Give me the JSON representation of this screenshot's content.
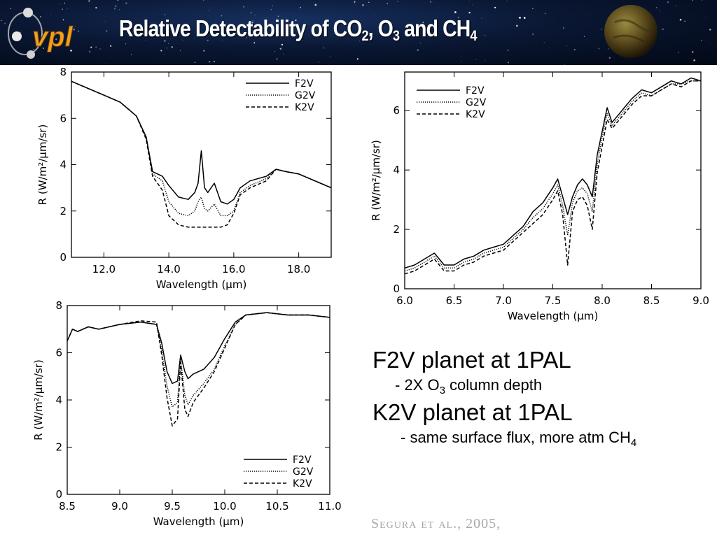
{
  "header": {
    "logo_text": "vpl",
    "title_parts": [
      {
        "t": "Relative Detectability of CO",
        "sub": false
      },
      {
        "t": "2",
        "sub": true
      },
      {
        "t": ", O",
        "sub": false
      },
      {
        "t": "3",
        "sub": true
      },
      {
        "t": " and CH",
        "sub": false
      },
      {
        "t": "4",
        "sub": true
      }
    ]
  },
  "notes": {
    "line1": "F2V planet at 1PAL",
    "line2_parts": [
      {
        "t": "- 2X O",
        "sub": false
      },
      {
        "t": "3",
        "sub": true
      },
      {
        "t": " column depth",
        "sub": false
      }
    ],
    "line3": "K2V planet at 1PAL",
    "line4_parts": [
      {
        "t": "- same surface flux, more atm CH",
        "sub": false
      },
      {
        "t": "4",
        "sub": true
      }
    ]
  },
  "citation": "Segura et al., 2005,",
  "chart_data": [
    {
      "type": "line",
      "xlabel": "Wavelength (μm)",
      "ylabel": "R (W/m²/μm/sr)",
      "xlim": [
        11,
        19
      ],
      "ylim": [
        0,
        8
      ],
      "xticks": [
        12,
        14,
        16,
        18
      ],
      "xtick_labels": [
        "12.0",
        "14.0",
        "16.0",
        "18.0"
      ],
      "yticks": [
        0,
        2,
        4,
        6,
        8
      ],
      "ytick_labels": [
        "0",
        "2",
        "4",
        "6",
        "8"
      ],
      "legend_position": "top-right",
      "series": [
        {
          "name": "F2V",
          "dash": "solid",
          "x": [
            11.0,
            11.5,
            12.0,
            12.5,
            13.0,
            13.3,
            13.5,
            13.8,
            14.0,
            14.3,
            14.6,
            14.8,
            14.9,
            15.0,
            15.1,
            15.2,
            15.4,
            15.6,
            15.8,
            16.0,
            16.2,
            16.5,
            17.0,
            17.3,
            17.6,
            18.0,
            18.5,
            19.0
          ],
          "y": [
            7.6,
            7.3,
            7.0,
            6.7,
            6.1,
            5.2,
            3.7,
            3.5,
            3.1,
            2.6,
            2.5,
            2.8,
            3.2,
            4.6,
            3.0,
            2.8,
            3.2,
            2.4,
            2.3,
            2.5,
            3.0,
            3.3,
            3.5,
            3.8,
            3.7,
            3.6,
            3.3,
            3.0
          ]
        },
        {
          "name": "G2V",
          "dash": "dotted",
          "x": [
            11.0,
            11.5,
            12.0,
            12.5,
            13.0,
            13.3,
            13.5,
            13.8,
            14.0,
            14.3,
            14.6,
            14.8,
            14.9,
            15.0,
            15.1,
            15.2,
            15.4,
            15.6,
            15.8,
            16.0,
            16.2,
            16.5,
            17.0,
            17.3,
            17.6,
            18.0,
            18.5,
            19.0
          ],
          "y": [
            7.6,
            7.3,
            7.0,
            6.7,
            6.1,
            5.2,
            3.6,
            3.3,
            2.4,
            1.9,
            1.8,
            2.0,
            2.4,
            2.6,
            2.1,
            2.0,
            2.3,
            1.8,
            1.8,
            2.0,
            2.8,
            3.1,
            3.4,
            3.8,
            3.7,
            3.6,
            3.3,
            3.0
          ]
        },
        {
          "name": "K2V",
          "dash": "dashed",
          "x": [
            11.0,
            11.5,
            12.0,
            12.5,
            13.0,
            13.3,
            13.5,
            13.8,
            14.0,
            14.3,
            14.6,
            14.8,
            15.0,
            15.2,
            15.4,
            15.6,
            15.8,
            16.0,
            16.2,
            16.5,
            17.0,
            17.3,
            17.6,
            18.0,
            18.5,
            19.0
          ],
          "y": [
            7.6,
            7.3,
            7.0,
            6.7,
            6.1,
            5.1,
            3.5,
            2.9,
            1.8,
            1.4,
            1.3,
            1.3,
            1.3,
            1.3,
            1.3,
            1.3,
            1.4,
            1.9,
            2.7,
            3.0,
            3.3,
            3.8,
            3.7,
            3.6,
            3.3,
            3.0
          ]
        }
      ]
    },
    {
      "type": "line",
      "xlabel": "Wavelength (μm)",
      "ylabel": "R (W/m²/μm/sr)",
      "xlim": [
        6,
        9
      ],
      "ylim": [
        0,
        7.3
      ],
      "xticks": [
        6.0,
        6.5,
        7.0,
        7.5,
        8.0,
        8.5,
        9.0
      ],
      "xtick_labels": [
        "6.0",
        "6.5",
        "7.0",
        "7.5",
        "8.0",
        "8.5",
        "9.0"
      ],
      "yticks": [
        0,
        2,
        4,
        6
      ],
      "ytick_labels": [
        "0",
        "2",
        "4",
        "6"
      ],
      "legend_position": "top-left",
      "series": [
        {
          "name": "F2V",
          "dash": "solid",
          "x": [
            6.0,
            6.1,
            6.2,
            6.3,
            6.4,
            6.5,
            6.6,
            6.7,
            6.8,
            6.9,
            7.0,
            7.1,
            7.2,
            7.3,
            7.4,
            7.5,
            7.55,
            7.6,
            7.65,
            7.7,
            7.75,
            7.8,
            7.85,
            7.9,
            7.95,
            8.0,
            8.05,
            8.1,
            8.2,
            8.3,
            8.4,
            8.5,
            8.6,
            8.7,
            8.8,
            8.9,
            9.0
          ],
          "y": [
            0.7,
            0.8,
            1.0,
            1.2,
            0.8,
            0.8,
            1.0,
            1.1,
            1.3,
            1.4,
            1.5,
            1.8,
            2.1,
            2.6,
            2.9,
            3.4,
            3.7,
            3.1,
            2.5,
            3.1,
            3.5,
            3.7,
            3.5,
            3.1,
            4.5,
            5.3,
            6.1,
            5.6,
            6.0,
            6.4,
            6.7,
            6.6,
            6.8,
            7.0,
            6.9,
            7.1,
            7.0
          ]
        },
        {
          "name": "G2V",
          "dash": "dotted",
          "x": [
            6.0,
            6.1,
            6.2,
            6.3,
            6.4,
            6.5,
            6.6,
            6.7,
            6.8,
            6.9,
            7.0,
            7.1,
            7.2,
            7.3,
            7.4,
            7.5,
            7.55,
            7.6,
            7.65,
            7.7,
            7.75,
            7.8,
            7.85,
            7.9,
            7.95,
            8.0,
            8.05,
            8.1,
            8.2,
            8.3,
            8.4,
            8.5,
            8.6,
            8.7,
            8.8,
            8.9,
            9.0
          ],
          "y": [
            0.6,
            0.7,
            0.9,
            1.1,
            0.7,
            0.7,
            0.9,
            1.0,
            1.2,
            1.3,
            1.4,
            1.7,
            2.0,
            2.4,
            2.7,
            3.2,
            3.5,
            2.8,
            1.8,
            2.9,
            3.3,
            3.4,
            3.2,
            2.6,
            4.2,
            5.1,
            5.9,
            5.5,
            5.9,
            6.3,
            6.6,
            6.5,
            6.7,
            6.9,
            6.9,
            7.0,
            7.0
          ]
        },
        {
          "name": "K2V",
          "dash": "dashed",
          "x": [
            6.0,
            6.1,
            6.2,
            6.3,
            6.4,
            6.5,
            6.6,
            6.7,
            6.8,
            6.9,
            7.0,
            7.1,
            7.2,
            7.3,
            7.4,
            7.5,
            7.55,
            7.6,
            7.65,
            7.7,
            7.75,
            7.8,
            7.85,
            7.9,
            7.95,
            8.0,
            8.05,
            8.1,
            8.2,
            8.3,
            8.4,
            8.5,
            8.6,
            8.7,
            8.8,
            8.9,
            9.0
          ],
          "y": [
            0.5,
            0.6,
            0.8,
            1.0,
            0.6,
            0.6,
            0.8,
            0.9,
            1.1,
            1.2,
            1.3,
            1.6,
            1.9,
            2.2,
            2.5,
            3.0,
            3.3,
            2.5,
            0.8,
            2.6,
            3.0,
            3.1,
            2.8,
            2.0,
            3.9,
            4.8,
            5.7,
            5.4,
            5.8,
            6.2,
            6.5,
            6.5,
            6.7,
            6.9,
            6.8,
            7.0,
            7.0
          ]
        }
      ]
    },
    {
      "type": "line",
      "xlabel": "Wavelength (μm)",
      "ylabel": "R (W/m²/μm/sr)",
      "xlim": [
        8.5,
        11.0
      ],
      "ylim": [
        0,
        8
      ],
      "xticks": [
        8.5,
        9.0,
        9.5,
        10.0,
        10.5,
        11.0
      ],
      "xtick_labels": [
        "8.5",
        "9.0",
        "9.5",
        "10.0",
        "10.5",
        "11.0"
      ],
      "yticks": [
        0,
        2,
        4,
        6,
        8
      ],
      "ytick_labels": [
        "0",
        "2",
        "4",
        "6",
        "8"
      ],
      "legend_position": "bottom-right",
      "series": [
        {
          "name": "F2V",
          "dash": "solid",
          "x": [
            8.5,
            8.55,
            8.6,
            8.7,
            8.8,
            9.0,
            9.2,
            9.35,
            9.4,
            9.45,
            9.5,
            9.55,
            9.58,
            9.62,
            9.65,
            9.7,
            9.8,
            9.9,
            10.0,
            10.1,
            10.2,
            10.4,
            10.6,
            10.8,
            11.0
          ],
          "y": [
            6.5,
            7.0,
            6.9,
            7.1,
            7.0,
            7.2,
            7.3,
            7.2,
            6.4,
            5.2,
            4.7,
            4.8,
            5.9,
            5.2,
            4.9,
            5.1,
            5.3,
            5.8,
            6.6,
            7.3,
            7.6,
            7.7,
            7.6,
            7.6,
            7.5
          ]
        },
        {
          "name": "G2V",
          "dash": "dotted",
          "x": [
            8.5,
            8.55,
            8.6,
            8.7,
            8.8,
            9.0,
            9.2,
            9.35,
            9.4,
            9.45,
            9.5,
            9.55,
            9.58,
            9.62,
            9.65,
            9.7,
            9.8,
            9.9,
            10.0,
            10.1,
            10.2,
            10.4,
            10.6,
            10.8,
            11.0
          ],
          "y": [
            6.5,
            7.0,
            6.9,
            7.1,
            7.0,
            7.2,
            7.3,
            7.2,
            6.1,
            4.6,
            3.7,
            3.9,
            5.7,
            4.2,
            3.8,
            4.2,
            4.7,
            5.3,
            6.3,
            7.2,
            7.6,
            7.7,
            7.6,
            7.6,
            7.5
          ]
        },
        {
          "name": "K2V",
          "dash": "dashed",
          "x": [
            8.5,
            8.55,
            8.6,
            8.7,
            8.8,
            9.0,
            9.2,
            9.35,
            9.4,
            9.45,
            9.5,
            9.55,
            9.58,
            9.62,
            9.65,
            9.7,
            9.8,
            9.9,
            10.0,
            10.1,
            10.2,
            10.4,
            10.6,
            10.8,
            11.0
          ],
          "y": [
            6.5,
            7.0,
            6.9,
            7.1,
            7.0,
            7.2,
            7.35,
            7.3,
            5.9,
            4.1,
            2.9,
            3.2,
            5.6,
            3.6,
            3.3,
            3.9,
            4.5,
            5.2,
            6.2,
            7.2,
            7.6,
            7.7,
            7.6,
            7.6,
            7.5
          ]
        }
      ]
    }
  ]
}
